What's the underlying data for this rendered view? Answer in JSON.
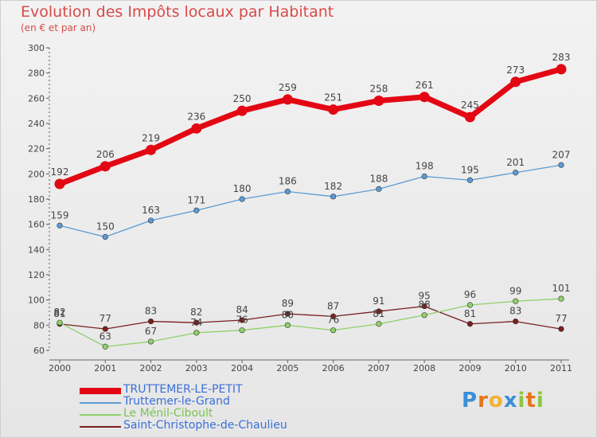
{
  "chart_data": {
    "type": "line",
    "title": "Evolution des Impôts locaux par Habitant",
    "subtitle": "(en € et par an)",
    "categories": [
      "2000",
      "2001",
      "2002",
      "2003",
      "2004",
      "2005",
      "2006",
      "2007",
      "2008",
      "2009",
      "2010",
      "2011"
    ],
    "ylim": [
      60,
      300
    ],
    "y_ticks": [
      60,
      80,
      100,
      120,
      140,
      160,
      180,
      200,
      220,
      240,
      260,
      280,
      300
    ],
    "grid": false,
    "legend_position": "bottom-left",
    "series": [
      {
        "name": "TRUTTEMER-LE-PETIT",
        "color": "#e30613",
        "values": [
          192,
          206,
          219,
          236,
          250,
          259,
          251,
          258,
          261,
          245,
          273,
          283
        ]
      },
      {
        "name": "Truttemer-le-Grand",
        "color": "#5b9bd5",
        "values": [
          159,
          150,
          163,
          171,
          180,
          186,
          182,
          188,
          198,
          195,
          201,
          207
        ]
      },
      {
        "name": "Le Ménil-Ciboult",
        "color": "#8fd16a",
        "values": [
          82,
          63,
          67,
          74,
          76,
          80,
          76,
          81,
          88,
          96,
          99,
          101
        ]
      },
      {
        "name": "Saint-Christophe-de-Chaulieu",
        "color": "#7a1f1f",
        "values": [
          81,
          77,
          83,
          82,
          84,
          89,
          87,
          91,
          95,
          81,
          83,
          77
        ]
      }
    ]
  },
  "logo": {
    "letters": [
      "P",
      "r",
      "o",
      "x",
      "i",
      "t",
      "i"
    ],
    "colors": [
      "#3a8fd6",
      "#e8751a",
      "#f2b134",
      "#3a8fd6",
      "#8cc63f",
      "#e8751a",
      "#8cc63f"
    ]
  }
}
